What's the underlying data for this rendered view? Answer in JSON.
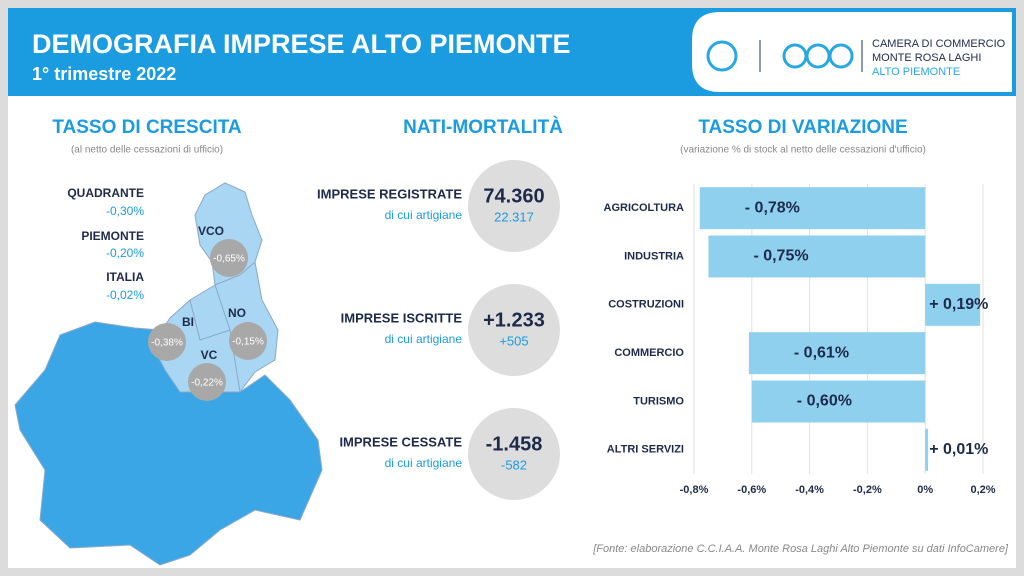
{
  "header": {
    "title": "DEMOGRAFIA IMPRESE ALTO PIEMONTE",
    "subtitle": "1° trimestre 2022",
    "logo_lines": [
      "CAMERA DI COMMERCIO",
      "MONTE ROSA LAGHI",
      "ALTO PIEMONTE"
    ]
  },
  "growth": {
    "title": "TASSO DI CRESCITA",
    "note": "(al netto delle cessazioni di ufficio)",
    "items": [
      {
        "label": "QUADRANTE",
        "value": "-0,30%"
      },
      {
        "label": "PIEMONTE",
        "value": "-0,20%"
      },
      {
        "label": "ITALIA",
        "value": "-0,02%"
      }
    ],
    "map": [
      {
        "label": "VCO",
        "value": "-0,65%"
      },
      {
        "label": "BI",
        "value": "-0,38%"
      },
      {
        "label": "NO",
        "value": "-0,15%"
      },
      {
        "label": "VC",
        "value": "-0,22%"
      }
    ]
  },
  "births": {
    "title": "NATI-MORTALITÀ",
    "rows": [
      {
        "label": "IMPRESE REGISTRATE",
        "sub": "di cui artigiane",
        "value": "74.360",
        "sub_value": "22.317"
      },
      {
        "label": "IMPRESE ISCRITTE",
        "sub": "di cui artigiane",
        "value": "+1.233",
        "sub_value": "+505"
      },
      {
        "label": "IMPRESE CESSATE",
        "sub": "di cui artigiane",
        "value": "-1.458",
        "sub_value": "-582"
      }
    ]
  },
  "chart_data": {
    "type": "hbar",
    "title": "TASSO DI VARIAZIONE",
    "subtitle": "(variazione % di stock al netto delle cessazioni d'ufficio)",
    "categories": [
      "AGRICOLTURA",
      "INDUSTRIA",
      "COSTRUZIONI",
      "COMMERCIO",
      "TURISMO",
      "ALTRI SERVIZI"
    ],
    "values": [
      -0.78,
      -0.75,
      0.19,
      -0.61,
      -0.6,
      0.01
    ],
    "value_labels": [
      "- 0,78%",
      "- 0,75%",
      "+ 0,19%",
      "- 0,61%",
      "- 0,60%",
      "+ 0,01%"
    ],
    "color": "#8fd0ef",
    "grid": true,
    "xlim": [
      -0.8,
      0.2
    ],
    "xticks": [
      {
        "value": -0.8,
        "label": "-0,8%"
      },
      {
        "value": -0.6,
        "label": "-0,6%"
      },
      {
        "value": -0.4,
        "label": "-0,4%"
      },
      {
        "value": -0.2,
        "label": "-0,2%"
      },
      {
        "value": 0,
        "label": "0%"
      },
      {
        "value": 0.2,
        "label": "0,2%"
      }
    ]
  },
  "source": "[Fonte: elaborazione C.C.I.A.A. Monte Rosa Laghi Alto Piemonte su dati InfoCamere]"
}
